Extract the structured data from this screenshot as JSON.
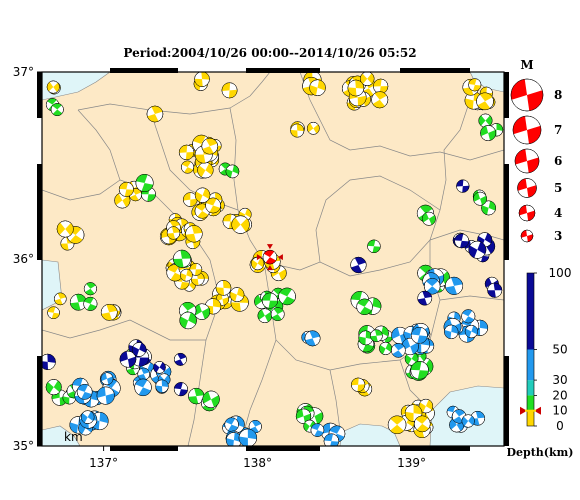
{
  "title": "Period:2004/10/26 00:00--2014/10/26 05:52",
  "map": {
    "lon_range": [
      136.6,
      139.6
    ],
    "lat_range": [
      35.0,
      37.0
    ],
    "lon_ticks": [
      {
        "value": 137,
        "label": "137°"
      },
      {
        "value": 138,
        "label": "138°"
      },
      {
        "value": 139,
        "label": "139°"
      }
    ],
    "lat_ticks": [
      {
        "value": 37,
        "label": "37°"
      },
      {
        "value": 36,
        "label": "36°"
      },
      {
        "value": 35,
        "label": "35°"
      }
    ],
    "land_color": "#fde9c6",
    "water_color": "#dff5f8",
    "border_color": "#888888"
  },
  "mainshock": {
    "lon": 138.08,
    "lat": 36.01,
    "color": "#ff0000"
  },
  "events": {
    "yellow_color": "#ffd700",
    "green_color": "#22dd22",
    "blue_color": "#2299ee",
    "darkblue_color": "#0a0a96",
    "clusters": [
      {
        "depth": "shallow",
        "lon": 136.68,
        "lat": 36.92,
        "n": 2
      },
      {
        "depth": "shallow",
        "lon": 137.62,
        "lat": 36.93,
        "n": 2
      },
      {
        "depth": "shallow",
        "lon": 137.8,
        "lat": 36.88,
        "n": 1
      },
      {
        "depth": "shallow",
        "lon": 138.4,
        "lat": 36.92,
        "n": 3
      },
      {
        "depth": "shallow",
        "lon": 138.7,
        "lat": 36.9,
        "n": 14
      },
      {
        "depth": "shallow",
        "lon": 139.47,
        "lat": 36.88,
        "n": 8
      },
      {
        "depth": "shallow",
        "lon": 137.65,
        "lat": 36.55,
        "n": 20
      },
      {
        "depth": "shallow",
        "lon": 138.3,
        "lat": 36.7,
        "n": 3
      },
      {
        "depth": "shallow",
        "lon": 137.15,
        "lat": 36.35,
        "n": 4
      },
      {
        "depth": "shallow",
        "lon": 137.5,
        "lat": 36.15,
        "n": 12
      },
      {
        "depth": "shallow",
        "lon": 137.65,
        "lat": 36.3,
        "n": 10
      },
      {
        "depth": "shallow",
        "lon": 137.9,
        "lat": 36.2,
        "n": 5
      },
      {
        "depth": "shallow",
        "lon": 138.08,
        "lat": 35.95,
        "n": 6
      },
      {
        "depth": "shallow",
        "lon": 137.55,
        "lat": 35.92,
        "n": 14
      },
      {
        "depth": "shallow",
        "lon": 137.8,
        "lat": 35.8,
        "n": 8
      },
      {
        "depth": "shallow",
        "lon": 136.8,
        "lat": 36.12,
        "n": 3
      },
      {
        "depth": "shallow",
        "lon": 136.7,
        "lat": 35.75,
        "n": 2
      },
      {
        "depth": "shallow",
        "lon": 137.1,
        "lat": 35.72,
        "n": 3
      },
      {
        "depth": "shallow",
        "lon": 139.0,
        "lat": 35.15,
        "n": 12
      },
      {
        "depth": "shallow",
        "lon": 138.7,
        "lat": 35.3,
        "n": 3
      },
      {
        "depth": "shallow",
        "lon": 137.35,
        "lat": 36.75,
        "n": 1
      },
      {
        "depth": "mid",
        "lon": 136.72,
        "lat": 36.8,
        "n": 2
      },
      {
        "depth": "mid",
        "lon": 137.25,
        "lat": 36.38,
        "n": 2
      },
      {
        "depth": "mid",
        "lon": 137.82,
        "lat": 36.48,
        "n": 2
      },
      {
        "depth": "mid",
        "lon": 137.5,
        "lat": 36.02,
        "n": 2
      },
      {
        "depth": "mid",
        "lon": 136.85,
        "lat": 35.8,
        "n": 3
      },
      {
        "depth": "mid",
        "lon": 137.6,
        "lat": 35.7,
        "n": 3
      },
      {
        "depth": "mid",
        "lon": 138.1,
        "lat": 35.75,
        "n": 10
      },
      {
        "depth": "mid",
        "lon": 137.2,
        "lat": 35.45,
        "n": 3
      },
      {
        "depth": "mid",
        "lon": 136.75,
        "lat": 35.3,
        "n": 5
      },
      {
        "depth": "mid",
        "lon": 137.65,
        "lat": 35.25,
        "n": 3
      },
      {
        "depth": "mid",
        "lon": 138.3,
        "lat": 35.15,
        "n": 6
      },
      {
        "depth": "mid",
        "lon": 138.75,
        "lat": 35.55,
        "n": 8
      },
      {
        "depth": "mid",
        "lon": 139.05,
        "lat": 35.45,
        "n": 8
      },
      {
        "depth": "mid",
        "lon": 139.15,
        "lat": 35.9,
        "n": 6
      },
      {
        "depth": "mid",
        "lon": 139.45,
        "lat": 36.3,
        "n": 3
      },
      {
        "depth": "mid",
        "lon": 139.5,
        "lat": 36.7,
        "n": 3
      },
      {
        "depth": "mid",
        "lon": 138.7,
        "lat": 35.78,
        "n": 3
      },
      {
        "depth": "mid",
        "lon": 139.15,
        "lat": 36.25,
        "n": 2
      },
      {
        "depth": "mid",
        "lon": 138.8,
        "lat": 36.05,
        "n": 1
      },
      {
        "depth": "deep",
        "lon": 136.95,
        "lat": 35.3,
        "n": 12
      },
      {
        "depth": "deep",
        "lon": 137.3,
        "lat": 35.35,
        "n": 10
      },
      {
        "depth": "deep",
        "lon": 136.9,
        "lat": 35.1,
        "n": 8
      },
      {
        "depth": "deep",
        "lon": 137.9,
        "lat": 35.08,
        "n": 8
      },
      {
        "depth": "deep",
        "lon": 138.45,
        "lat": 35.05,
        "n": 4
      },
      {
        "depth": "deep",
        "lon": 139.0,
        "lat": 35.55,
        "n": 12
      },
      {
        "depth": "deep",
        "lon": 139.35,
        "lat": 35.65,
        "n": 10
      },
      {
        "depth": "deep",
        "lon": 139.35,
        "lat": 35.15,
        "n": 6
      },
      {
        "depth": "deep",
        "lon": 138.3,
        "lat": 35.55,
        "n": 2
      },
      {
        "depth": "deep",
        "lon": 139.2,
        "lat": 35.88,
        "n": 5
      },
      {
        "depth": "vdeep",
        "lon": 137.3,
        "lat": 35.45,
        "n": 3
      },
      {
        "depth": "vdeep",
        "lon": 137.2,
        "lat": 35.5,
        "n": 3
      },
      {
        "depth": "vdeep",
        "lon": 137.5,
        "lat": 35.45,
        "n": 1
      },
      {
        "depth": "vdeep",
        "lon": 137.48,
        "lat": 35.3,
        "n": 1
      },
      {
        "depth": "vdeep",
        "lon": 138.62,
        "lat": 35.98,
        "n": 1
      },
      {
        "depth": "vdeep",
        "lon": 139.1,
        "lat": 35.82,
        "n": 1
      },
      {
        "depth": "vdeep",
        "lon": 139.4,
        "lat": 36.05,
        "n": 7
      },
      {
        "depth": "vdeep",
        "lon": 139.55,
        "lat": 35.85,
        "n": 2
      },
      {
        "depth": "vdeep",
        "lon": 139.35,
        "lat": 36.37,
        "n": 1
      },
      {
        "depth": "vdeep",
        "lon": 136.62,
        "lat": 35.45,
        "n": 1
      }
    ]
  },
  "magnitude_legend": {
    "title": "M",
    "levels": [
      "8",
      "7",
      "6",
      "5",
      "4",
      "3"
    ]
  },
  "depth_legend": {
    "title": "Depth(km)",
    "ticks": [
      "100",
      "50",
      "30",
      "20",
      "10",
      "0"
    ],
    "colors": [
      {
        "from": 0,
        "to": 10,
        "color": "#ffd700"
      },
      {
        "from": 10,
        "to": 20,
        "color": "#22dd22"
      },
      {
        "from": 20,
        "to": 30,
        "color": "#22ccbb"
      },
      {
        "from": 30,
        "to": 50,
        "color": "#2299ee"
      },
      {
        "from": 50,
        "to": 100,
        "color": "#0a0a96"
      }
    ],
    "mainshock_marker_depth": 10
  },
  "scale_label": "km"
}
